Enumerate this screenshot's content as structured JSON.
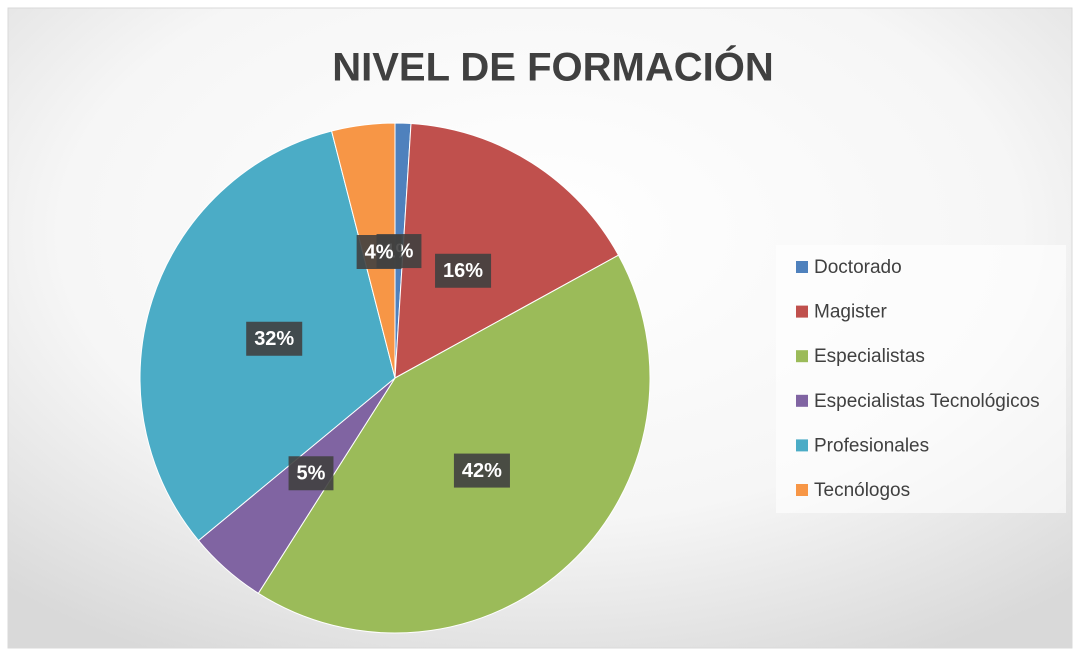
{
  "chart_data": {
    "type": "pie",
    "title": "NIVEL DE FORMACIÓN",
    "categories": [
      "Doctorado",
      "Magister",
      "Especialistas",
      "Especialistas Tecnológicos",
      "Profesionales",
      "Tecnólogos"
    ],
    "values": [
      1,
      16,
      42,
      5,
      32,
      4
    ],
    "value_labels": [
      "1%",
      "16%",
      "42%",
      "5%",
      "32%",
      "4%"
    ],
    "colors": [
      "#4f81bd",
      "#c0504d",
      "#9bbb59",
      "#8064a2",
      "#4bacc6",
      "#f79646"
    ],
    "legend": "right"
  }
}
